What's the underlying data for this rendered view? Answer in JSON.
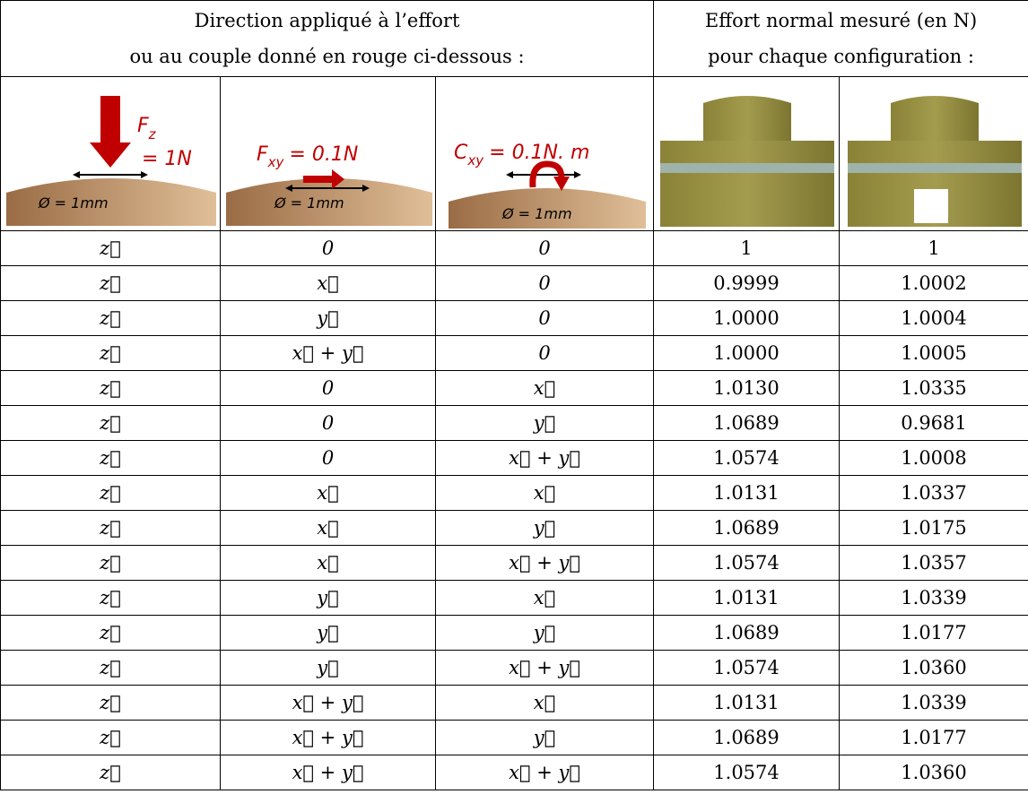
{
  "header": {
    "left": [
      "Direction appliqué à l’effort",
      "ou au couple donné en rouge ci-dessous :"
    ],
    "right": [
      "Effort normal mesuré (en N)",
      "pour chaque configuration :"
    ]
  },
  "diagrams": [
    {
      "symbol": "F",
      "subscript": "z",
      "value": "= 1N",
      "diameter": "Ø = 1mm"
    },
    {
      "symbol": "F",
      "subscript": "xy",
      "value": "= 0.1N",
      "diameter": "Ø = 1mm"
    },
    {
      "symbol": "C",
      "subscript": "xy",
      "value": "= 0.1N. m",
      "diameter": "Ø = 1mm"
    }
  ],
  "table": {
    "rows": [
      [
        "z⃗",
        "0",
        "0",
        "1",
        "1"
      ],
      [
        "z⃗",
        "x⃗",
        "0",
        "0.9999",
        "1.0002"
      ],
      [
        "z⃗",
        "y⃗",
        "0",
        "1.0000",
        "1.0004"
      ],
      [
        "z⃗",
        "x⃗ + y⃗",
        "0",
        "1.0000",
        "1.0005"
      ],
      [
        "z⃗",
        "0",
        "x⃗",
        "1.0130",
        "1.0335"
      ],
      [
        "z⃗",
        "0",
        "y⃗",
        "1.0689",
        "0.9681"
      ],
      [
        "z⃗",
        "0",
        "x⃗ + y⃗",
        "1.0574",
        "1.0008"
      ],
      [
        "z⃗",
        "x⃗",
        "x⃗",
        "1.0131",
        "1.0337"
      ],
      [
        "z⃗",
        "x⃗",
        "y⃗",
        "1.0689",
        "1.0175"
      ],
      [
        "z⃗",
        "x⃗",
        "x⃗ + y⃗",
        "1.0574",
        "1.0357"
      ],
      [
        "z⃗",
        "y⃗",
        "x⃗",
        "1.0131",
        "1.0339"
      ],
      [
        "z⃗",
        "y⃗",
        "y⃗",
        "1.0689",
        "1.0177"
      ],
      [
        "z⃗",
        "y⃗",
        "x⃗ + y⃗",
        "1.0574",
        "1.0360"
      ],
      [
        "z⃗",
        "x⃗ + y⃗",
        "x⃗",
        "1.0131",
        "1.0339"
      ],
      [
        "z⃗",
        "x⃗ + y⃗",
        "y⃗",
        "1.0689",
        "1.0177"
      ],
      [
        "z⃗",
        "x⃗ + y⃗",
        "x⃗ + y⃗",
        "1.0574",
        "1.0360"
      ]
    ]
  }
}
